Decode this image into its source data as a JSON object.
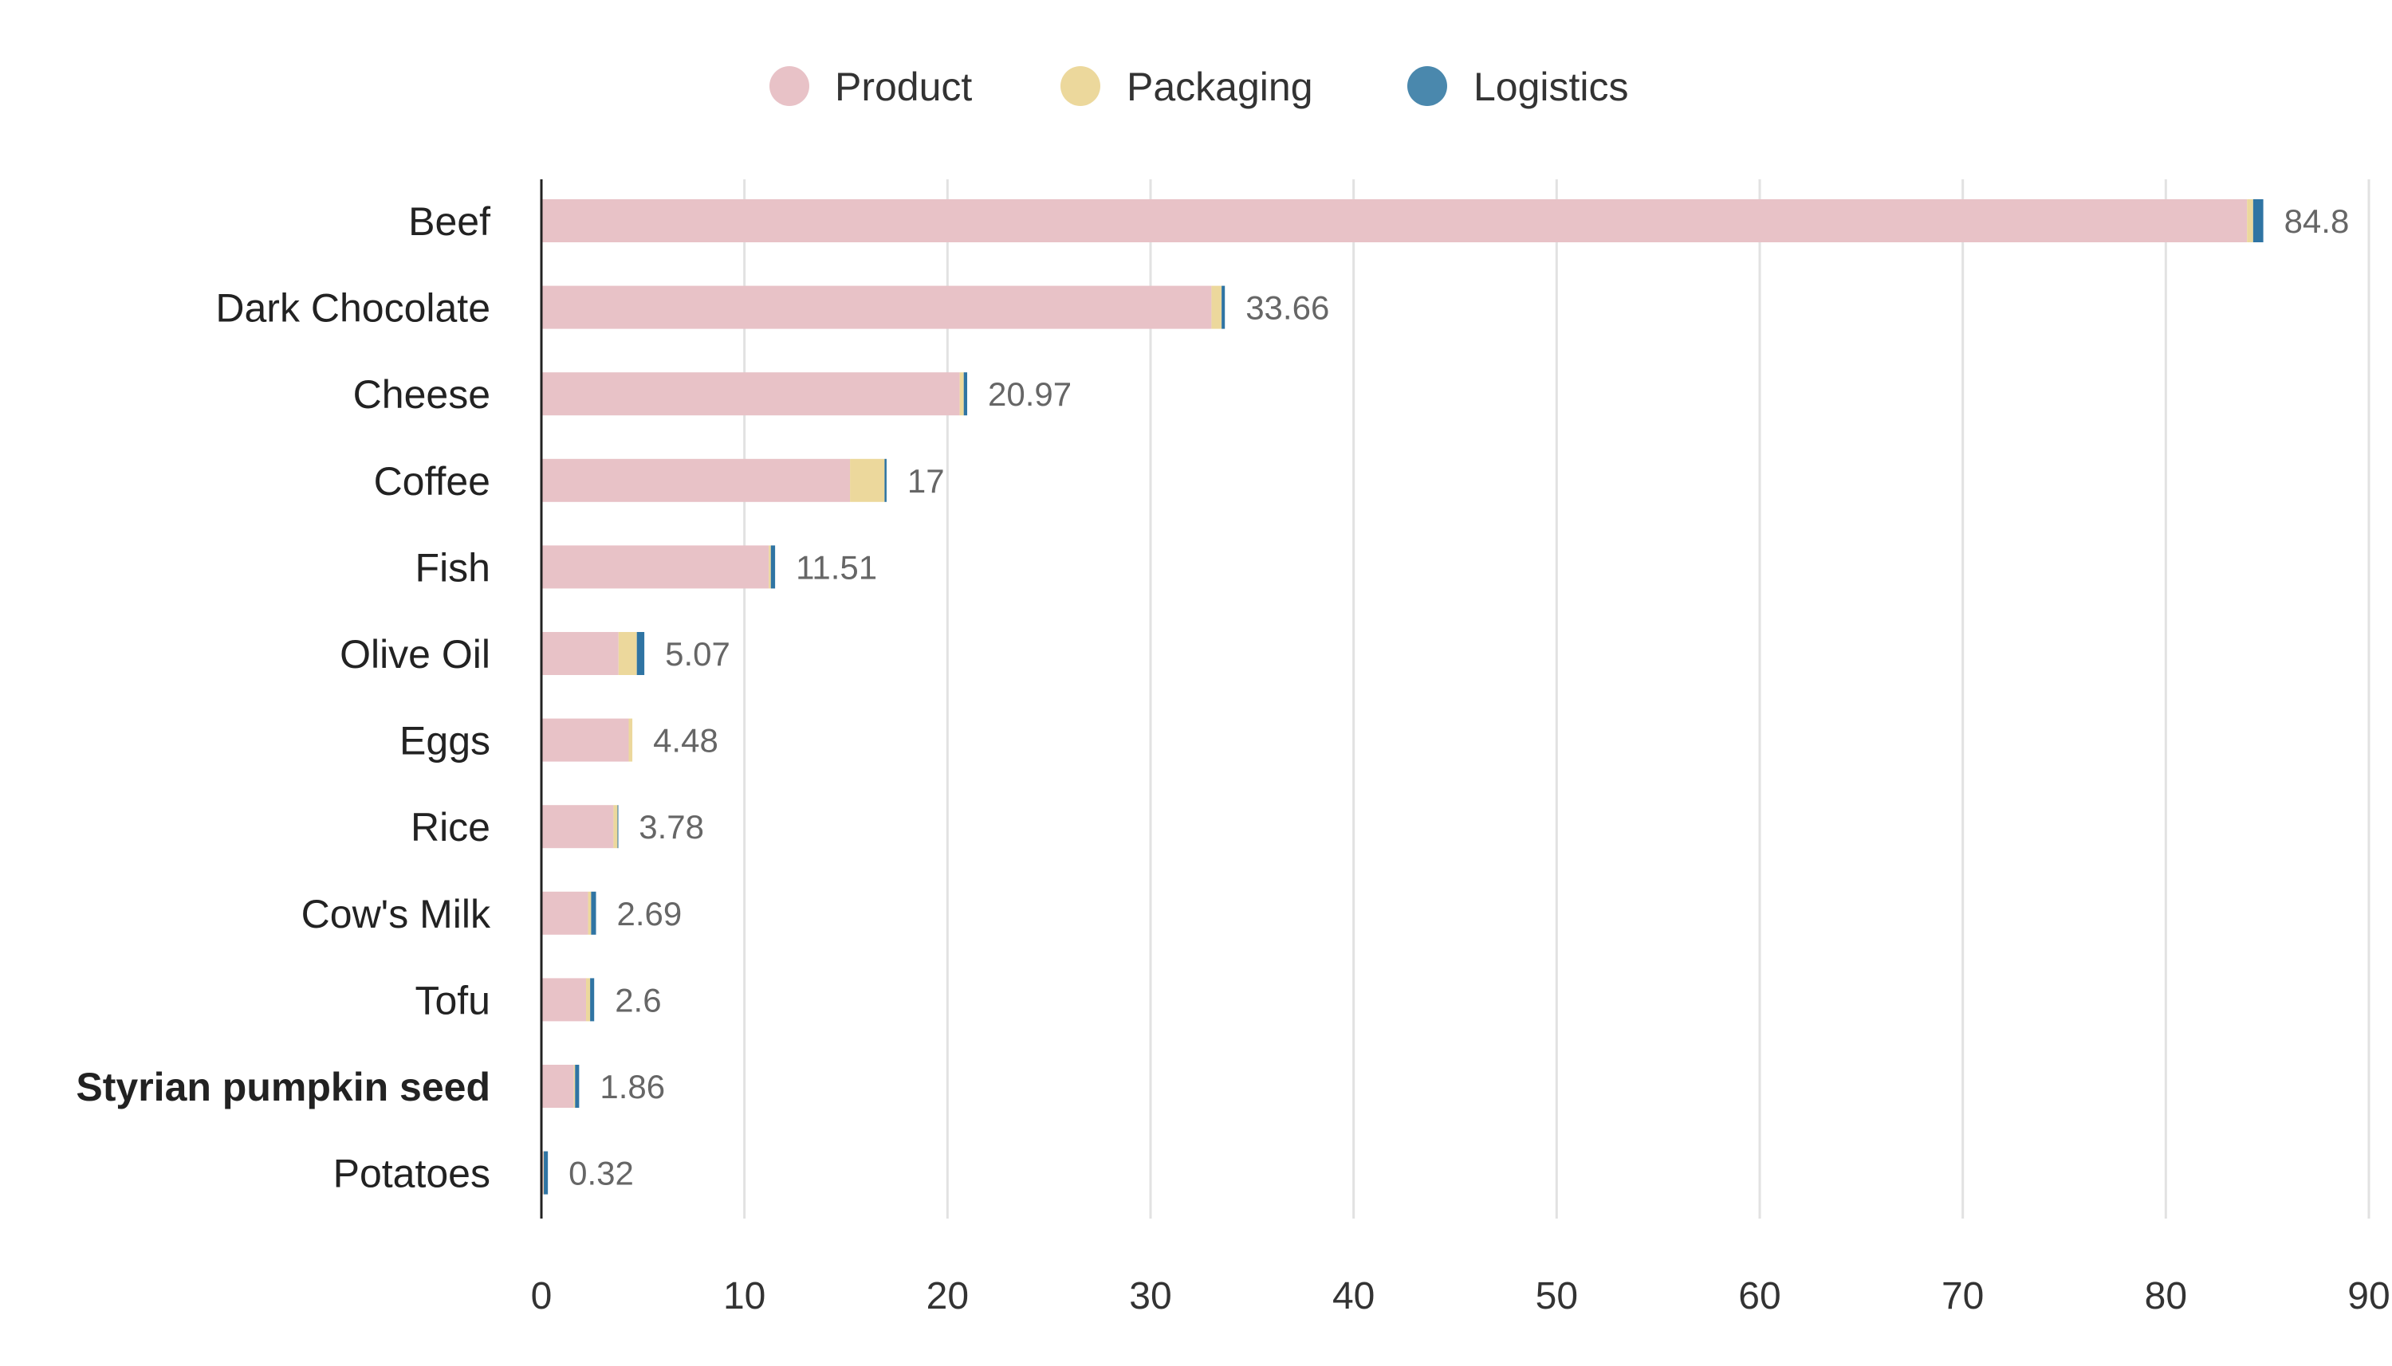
{
  "chart_data": {
    "type": "bar",
    "orientation": "horizontal",
    "stacked": true,
    "categories": [
      "Beef",
      "Dark Chocolate",
      "Cheese",
      "Coffee",
      "Fish",
      "Olive Oil",
      "Eggs",
      "Rice",
      "Cow's Milk",
      "Tofu",
      "Styrian pumpkin seed",
      "Potatoes"
    ],
    "highlighted_category": "Styrian pumpkin seed",
    "series": [
      {
        "name": "Product",
        "color": "#e8c2c7",
        "values": [
          84.0,
          33.0,
          20.6,
          15.2,
          11.2,
          3.8,
          4.3,
          3.55,
          2.3,
          2.2,
          1.6,
          0.1
        ]
      },
      {
        "name": "Packaging",
        "color": "#ecd89c",
        "values": [
          0.3,
          0.5,
          0.2,
          1.7,
          0.1,
          0.9,
          0.18,
          0.2,
          0.15,
          0.2,
          0.06,
          0.02
        ]
      },
      {
        "name": "Logistics",
        "color": "#2f74a3",
        "values": [
          0.5,
          0.16,
          0.17,
          0.1,
          0.21,
          0.37,
          0.0,
          0.03,
          0.24,
          0.2,
          0.2,
          0.2
        ]
      }
    ],
    "totals": [
      "84.8",
      "33.66",
      "20.97",
      "17",
      "11.51",
      "5.07",
      "4.48",
      "3.78",
      "2.69",
      "2.6",
      "1.86",
      "0.32"
    ],
    "xlim": [
      0,
      90
    ],
    "xticks": [
      "0",
      "10",
      "20",
      "30",
      "40",
      "50",
      "60",
      "70",
      "80",
      "90"
    ],
    "grid": true,
    "legend_position": "top-center",
    "legend_colors": [
      "#e8c2c7",
      "#ecd89c",
      "#4a88ad"
    ],
    "title": "",
    "xlabel": "",
    "ylabel": ""
  }
}
